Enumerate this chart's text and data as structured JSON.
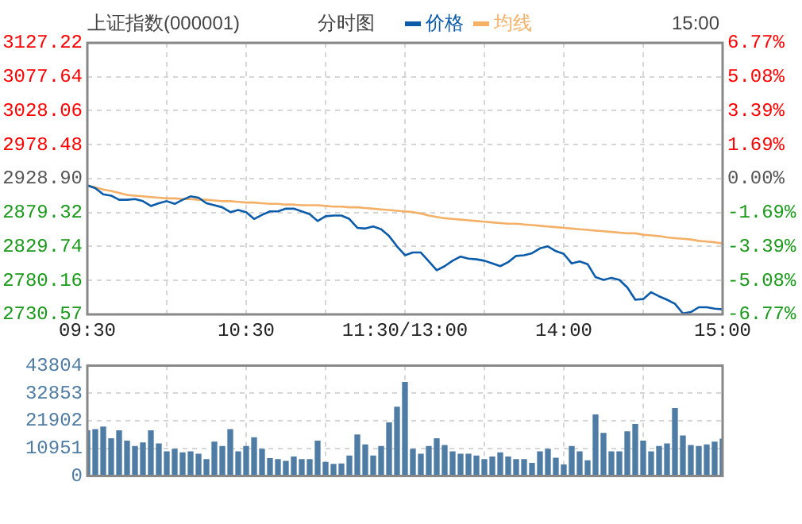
{
  "chart_data": [
    {
      "type": "line",
      "title": "上证指数(000001)",
      "subtitle": "分时图",
      "annotations": [
        "15:00"
      ],
      "legend": "top",
      "marker": "none",
      "line_style": "solid",
      "grid": true,
      "categories": [
        "09:30",
        null,
        null,
        null,
        null,
        null,
        null,
        null,
        null,
        null,
        null,
        null,
        null,
        null,
        null,
        null,
        null,
        null,
        null,
        null,
        "10:30",
        null,
        null,
        null,
        null,
        null,
        null,
        null,
        null,
        null,
        null,
        null,
        null,
        null,
        null,
        null,
        null,
        null,
        null,
        null,
        "11:30/13:00",
        null,
        null,
        null,
        null,
        null,
        null,
        null,
        null,
        null,
        null,
        null,
        null,
        null,
        null,
        null,
        null,
        null,
        null,
        null,
        "14:00",
        null,
        null,
        null,
        null,
        null,
        null,
        null,
        null,
        null,
        null,
        null,
        null,
        null,
        null,
        null,
        null,
        null,
        null,
        null,
        "15:00"
      ],
      "series": [
        {
          "name": "价格",
          "color": "#0b5bab",
          "values": [
            2919,
            2915,
            2906,
            2904,
            2898,
            2898,
            2899,
            2896,
            2889,
            2893,
            2896,
            2892,
            2898,
            2903,
            2901,
            2893,
            2890,
            2887,
            2880,
            2883,
            2880,
            2870,
            2876,
            2881,
            2881,
            2885,
            2885,
            2881,
            2877,
            2867,
            2874,
            2875,
            2875,
            2870,
            2857,
            2856,
            2859,
            2855,
            2845,
            2830,
            2817,
            2821,
            2821,
            2808,
            2795,
            2801,
            2809,
            2815,
            2812,
            2811,
            2809,
            2805,
            2801,
            2807,
            2816,
            2817,
            2820,
            2827,
            2830,
            2823,
            2819,
            2805,
            2808,
            2804,
            2785,
            2781,
            2784,
            2781,
            2770,
            2752,
            2753,
            2763,
            2757,
            2752,
            2746,
            2732,
            2734,
            2741,
            2741,
            2739,
            2738
          ]
        },
        {
          "name": "均线",
          "color": "#f5b067",
          "values": [
            2919,
            2916,
            2913,
            2911,
            2908,
            2905,
            2904,
            2903,
            2902,
            2901,
            2900,
            2900,
            2899,
            2899,
            2898,
            2898,
            2897,
            2896,
            2896,
            2895,
            2894,
            2894,
            2893,
            2892,
            2892,
            2891,
            2891,
            2890,
            2890,
            2890,
            2889,
            2888,
            2888,
            2887,
            2887,
            2886,
            2885,
            2884,
            2883,
            2882,
            2881,
            2880,
            2878,
            2875,
            2873,
            2871,
            2870,
            2869,
            2868,
            2867,
            2866,
            2865,
            2864,
            2863,
            2863,
            2862,
            2861,
            2860,
            2859,
            2858,
            2857,
            2856,
            2855,
            2854,
            2853,
            2852,
            2851,
            2850,
            2849,
            2849,
            2847,
            2846,
            2845,
            2843,
            2842,
            2841,
            2840,
            2838,
            2837,
            2836,
            2834
          ]
        }
      ],
      "ylim": [
        2730.57,
        3127.22
      ],
      "yticks": [
        {
          "value": 2730.57,
          "label": "2730.57"
        },
        {
          "value": 2780.16,
          "label": "2780.16"
        },
        {
          "value": 2829.74,
          "label": "2829.74"
        },
        {
          "value": 2879.32,
          "label": "2879.32"
        },
        {
          "value": 2928.9,
          "label": "2928.90"
        },
        {
          "value": 2978.48,
          "label": "2978.48"
        },
        {
          "value": 3028.06,
          "label": "3028.06"
        },
        {
          "value": 3077.64,
          "label": "3077.64"
        },
        {
          "value": 3127.22,
          "label": "3127.22"
        }
      ],
      "y2lim": [
        -6.77,
        6.77
      ],
      "y2ticks": [
        {
          "value": -6.77,
          "label": "-6.77%"
        },
        {
          "value": -5.08,
          "label": "-5.08%"
        },
        {
          "value": -3.39,
          "label": "-3.39%"
        },
        {
          "value": -1.69,
          "label": "-1.69%"
        },
        {
          "value": 0,
          "label": "0.00%"
        },
        {
          "value": 1.69,
          "label": "1.69%"
        },
        {
          "value": 3.39,
          "label": "3.39%"
        },
        {
          "value": 5.08,
          "label": "5.08%"
        },
        {
          "value": 6.77,
          "label": "6.77%"
        }
      ]
    },
    {
      "type": "bar",
      "color": "#4f7ca4",
      "grid": true,
      "tick_labels": "y",
      "categories": [
        null,
        null,
        null,
        null,
        null,
        null,
        null,
        null,
        null,
        null,
        null,
        null,
        null,
        null,
        null,
        null,
        null,
        null,
        null,
        null,
        null,
        null,
        null,
        null,
        null,
        null,
        null,
        null,
        null,
        null,
        null,
        null,
        null,
        null,
        null,
        null,
        null,
        null,
        null,
        null,
        null,
        null,
        null,
        null,
        null,
        null,
        null,
        null,
        null,
        null,
        null,
        null,
        null,
        null,
        null,
        null,
        null,
        null,
        null,
        null,
        null,
        null,
        null,
        null,
        null,
        null,
        null,
        null,
        null,
        null,
        null,
        null,
        null,
        null,
        null,
        null,
        null,
        null,
        null,
        null,
        null
      ],
      "values": [
        17900,
        18400,
        19400,
        14800,
        17900,
        13800,
        11700,
        13100,
        17900,
        12700,
        9600,
        10600,
        9200,
        9600,
        8600,
        6500,
        13400,
        11700,
        18400,
        9600,
        11700,
        15200,
        10600,
        6900,
        6500,
        5800,
        7500,
        6500,
        6500,
        13800,
        5400,
        4600,
        4800,
        7900,
        16300,
        12300,
        7900,
        11700,
        21100,
        27300,
        37100,
        10600,
        8600,
        11700,
        14800,
        12100,
        9600,
        8600,
        8600,
        7900,
        6500,
        7500,
        9200,
        7500,
        6500,
        6500,
        5000,
        9600,
        10600,
        7100,
        4400,
        11700,
        9600,
        6000,
        24200,
        16900,
        9600,
        9600,
        17500,
        20400,
        13800,
        9600,
        11700,
        12700,
        26700,
        15900,
        12100,
        11700,
        12300,
        13400,
        14600
      ],
      "ylim": [
        0,
        43804
      ],
      "yticks": [
        0,
        10951,
        21902,
        32853,
        43804
      ]
    }
  ]
}
